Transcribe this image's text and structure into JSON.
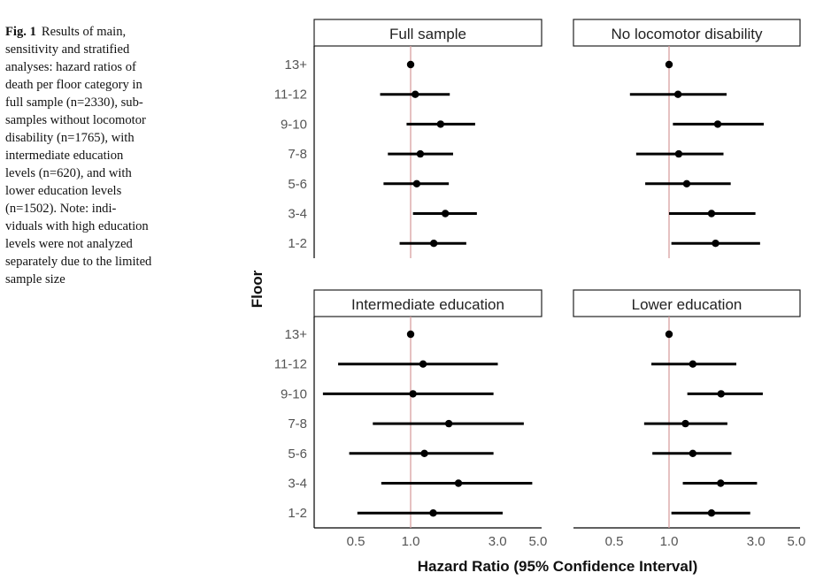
{
  "caption": {
    "label": "Fig. 1",
    "lines": [
      "Results of main,",
      "sensitivity and stratified",
      "analyses: hazard ratios of",
      "death per floor category in",
      "full sample (n=2330), sub-",
      "samples without locomotor",
      "disability (n=1765), with",
      "intermediate education",
      "levels (n=620), and with",
      "lower education levels",
      "(n=1502). Note: indi-",
      "viduals with high education",
      "levels were not analyzed",
      "separately due to the limited",
      "sample size"
    ]
  },
  "colors": {
    "reference_line": "#d9a0a0",
    "marks": "#000000",
    "strip_border": "#222222",
    "tick_text": "#555555"
  },
  "chart_data": {
    "type": "forest",
    "xlabel": "Hazard Ratio (95% Confidence Interval)",
    "ylabel": "Floor",
    "xscale": "log",
    "xlim": [
      0.3,
      5.0
    ],
    "xticks": [
      0.5,
      1.0,
      3.0,
      5.0
    ],
    "xtick_labels": [
      "0.5",
      "1.0",
      "3.0",
      "5.0"
    ],
    "reference_value": 1.0,
    "categories": [
      "13+",
      "11-12",
      "9-10",
      "7-8",
      "5-6",
      "3-4",
      "1-2"
    ],
    "panels": [
      {
        "title": "Full sample",
        "estimates": [
          {
            "floor": "13+",
            "hr": 1.0,
            "lo": null,
            "hi": null
          },
          {
            "floor": "11-12",
            "hr": 1.06,
            "lo": 0.68,
            "hi": 1.64
          },
          {
            "floor": "9-10",
            "hr": 1.46,
            "lo": 0.95,
            "hi": 2.26
          },
          {
            "floor": "7-8",
            "hr": 1.13,
            "lo": 0.75,
            "hi": 1.71
          },
          {
            "floor": "5-6",
            "hr": 1.08,
            "lo": 0.71,
            "hi": 1.62
          },
          {
            "floor": "3-4",
            "hr": 1.55,
            "lo": 1.03,
            "hi": 2.31
          },
          {
            "floor": "1-2",
            "hr": 1.34,
            "lo": 0.87,
            "hi": 2.02
          }
        ]
      },
      {
        "title": "No locomotor disability",
        "estimates": [
          {
            "floor": "13+",
            "hr": 1.0,
            "lo": null,
            "hi": null
          },
          {
            "floor": "11-12",
            "hr": 1.12,
            "lo": 0.61,
            "hi": 2.07
          },
          {
            "floor": "9-10",
            "hr": 1.85,
            "lo": 1.05,
            "hi": 3.31
          },
          {
            "floor": "7-8",
            "hr": 1.13,
            "lo": 0.66,
            "hi": 1.99
          },
          {
            "floor": "5-6",
            "hr": 1.25,
            "lo": 0.74,
            "hi": 2.18
          },
          {
            "floor": "3-4",
            "hr": 1.71,
            "lo": 1.0,
            "hi": 2.98
          },
          {
            "floor": "1-2",
            "hr": 1.8,
            "lo": 1.03,
            "hi": 3.16
          }
        ]
      },
      {
        "title": "Intermediate education",
        "estimates": [
          {
            "floor": "13+",
            "hr": 1.0,
            "lo": null,
            "hi": null
          },
          {
            "floor": "11-12",
            "hr": 1.17,
            "lo": 0.4,
            "hi": 3.01
          },
          {
            "floor": "9-10",
            "hr": 1.03,
            "lo": 0.33,
            "hi": 2.85
          },
          {
            "floor": "7-8",
            "hr": 1.62,
            "lo": 0.62,
            "hi": 4.18
          },
          {
            "floor": "5-6",
            "hr": 1.19,
            "lo": 0.46,
            "hi": 2.85
          },
          {
            "floor": "3-4",
            "hr": 1.83,
            "lo": 0.69,
            "hi": 4.65
          },
          {
            "floor": "1-2",
            "hr": 1.33,
            "lo": 0.51,
            "hi": 3.2
          }
        ]
      },
      {
        "title": "Lower education",
        "estimates": [
          {
            "floor": "13+",
            "hr": 1.0,
            "lo": null,
            "hi": null
          },
          {
            "floor": "11-12",
            "hr": 1.35,
            "lo": 0.8,
            "hi": 2.34
          },
          {
            "floor": "9-10",
            "hr": 1.93,
            "lo": 1.26,
            "hi": 3.27
          },
          {
            "floor": "7-8",
            "hr": 1.23,
            "lo": 0.73,
            "hi": 2.09
          },
          {
            "floor": "5-6",
            "hr": 1.35,
            "lo": 0.81,
            "hi": 2.2
          },
          {
            "floor": "3-4",
            "hr": 1.92,
            "lo": 1.19,
            "hi": 3.04
          },
          {
            "floor": "1-2",
            "hr": 1.71,
            "lo": 1.03,
            "hi": 2.79
          }
        ]
      }
    ]
  }
}
